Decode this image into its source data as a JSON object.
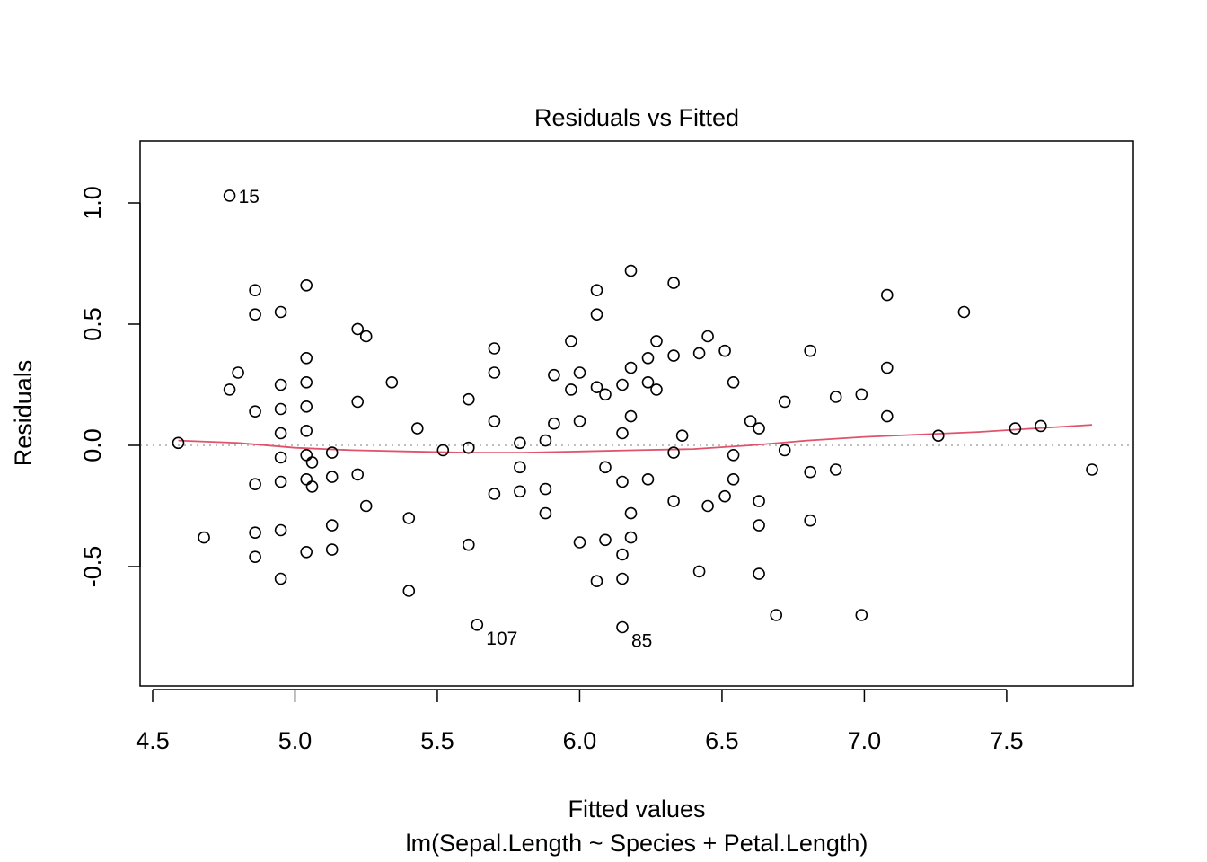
{
  "chart_data": {
    "type": "scatter",
    "title": "Residuals vs Fitted",
    "xlabel": "Fitted values",
    "ylabel": "Residuals",
    "subtitle": "lm(Sepal.Length ~ Species + Petal.Length)",
    "xlim": [
      4.5,
      7.85
    ],
    "ylim": [
      -0.9,
      1.2
    ],
    "xticks": [
      "4.5",
      "5.0",
      "5.5",
      "6.0",
      "6.5",
      "7.0",
      "7.5"
    ],
    "yticks": [
      "-0.5",
      "0.0",
      "0.5",
      "1.0"
    ],
    "grid": false,
    "legend": "none",
    "reference_line": {
      "y": 0,
      "style": "dotted",
      "color": "#bebebe"
    },
    "smoother_color": "#df536b",
    "point_color": "#000000",
    "points": [
      [
        4.59,
        0.01
      ],
      [
        4.68,
        -0.38
      ],
      [
        4.77,
        1.03
      ],
      [
        4.77,
        0.23
      ],
      [
        4.8,
        0.3
      ],
      [
        4.86,
        0.64
      ],
      [
        4.86,
        0.54
      ],
      [
        4.86,
        0.14
      ],
      [
        4.86,
        -0.16
      ],
      [
        4.86,
        -0.36
      ],
      [
        4.86,
        -0.46
      ],
      [
        4.95,
        0.55
      ],
      [
        4.95,
        0.25
      ],
      [
        4.95,
        0.15
      ],
      [
        4.95,
        0.05
      ],
      [
        4.95,
        -0.05
      ],
      [
        4.95,
        -0.15
      ],
      [
        4.95,
        -0.35
      ],
      [
        4.95,
        -0.55
      ],
      [
        5.04,
        0.66
      ],
      [
        5.04,
        0.36
      ],
      [
        5.04,
        0.26
      ],
      [
        5.04,
        0.16
      ],
      [
        5.04,
        0.06
      ],
      [
        5.04,
        -0.04
      ],
      [
        5.04,
        -0.14
      ],
      [
        5.04,
        -0.44
      ],
      [
        5.06,
        -0.07
      ],
      [
        5.06,
        -0.17
      ],
      [
        5.13,
        -0.03
      ],
      [
        5.13,
        -0.13
      ],
      [
        5.13,
        -0.33
      ],
      [
        5.13,
        -0.43
      ],
      [
        5.22,
        0.48
      ],
      [
        5.22,
        0.18
      ],
      [
        5.22,
        -0.12
      ],
      [
        5.25,
        0.45
      ],
      [
        5.25,
        -0.25
      ],
      [
        5.34,
        0.26
      ],
      [
        5.4,
        -0.3
      ],
      [
        5.4,
        -0.6
      ],
      [
        5.43,
        0.07
      ],
      [
        5.52,
        -0.02
      ],
      [
        5.61,
        0.19
      ],
      [
        5.61,
        -0.01
      ],
      [
        5.61,
        -0.41
      ],
      [
        5.64,
        -0.74
      ],
      [
        5.7,
        0.4
      ],
      [
        5.7,
        0.3
      ],
      [
        5.7,
        0.1
      ],
      [
        5.7,
        -0.2
      ],
      [
        5.79,
        0.01
      ],
      [
        5.79,
        -0.09
      ],
      [
        5.79,
        -0.19
      ],
      [
        5.88,
        0.02
      ],
      [
        5.88,
        -0.18
      ],
      [
        5.88,
        -0.28
      ],
      [
        5.91,
        0.29
      ],
      [
        5.91,
        0.09
      ],
      [
        5.97,
        0.43
      ],
      [
        5.97,
        0.23
      ],
      [
        6.0,
        0.3
      ],
      [
        6.0,
        0.1
      ],
      [
        6.0,
        -0.4
      ],
      [
        6.06,
        0.64
      ],
      [
        6.06,
        0.54
      ],
      [
        6.06,
        0.24
      ],
      [
        6.06,
        -0.56
      ],
      [
        6.09,
        0.21
      ],
      [
        6.09,
        -0.09
      ],
      [
        6.09,
        -0.39
      ],
      [
        6.15,
        0.25
      ],
      [
        6.15,
        0.05
      ],
      [
        6.15,
        -0.15
      ],
      [
        6.15,
        -0.45
      ],
      [
        6.15,
        -0.55
      ],
      [
        6.15,
        -0.75
      ],
      [
        6.18,
        0.72
      ],
      [
        6.18,
        0.32
      ],
      [
        6.18,
        0.12
      ],
      [
        6.18,
        -0.28
      ],
      [
        6.18,
        -0.38
      ],
      [
        6.24,
        0.36
      ],
      [
        6.24,
        0.26
      ],
      [
        6.24,
        -0.14
      ],
      [
        6.27,
        0.43
      ],
      [
        6.27,
        0.23
      ],
      [
        6.33,
        0.67
      ],
      [
        6.33,
        0.37
      ],
      [
        6.33,
        -0.03
      ],
      [
        6.33,
        -0.23
      ],
      [
        6.36,
        0.04
      ],
      [
        6.42,
        0.38
      ],
      [
        6.42,
        -0.52
      ],
      [
        6.45,
        0.45
      ],
      [
        6.45,
        -0.25
      ],
      [
        6.51,
        0.39
      ],
      [
        6.51,
        -0.21
      ],
      [
        6.54,
        0.26
      ],
      [
        6.54,
        -0.04
      ],
      [
        6.54,
        -0.14
      ],
      [
        6.6,
        0.1
      ],
      [
        6.63,
        0.07
      ],
      [
        6.63,
        -0.23
      ],
      [
        6.63,
        -0.33
      ],
      [
        6.63,
        -0.53
      ],
      [
        6.69,
        -0.7
      ],
      [
        6.72,
        0.18
      ],
      [
        6.72,
        -0.02
      ],
      [
        6.81,
        0.39
      ],
      [
        6.81,
        -0.11
      ],
      [
        6.81,
        -0.31
      ],
      [
        6.9,
        0.2
      ],
      [
        6.9,
        -0.1
      ],
      [
        6.99,
        0.21
      ],
      [
        6.99,
        -0.7
      ],
      [
        7.08,
        0.62
      ],
      [
        7.08,
        0.32
      ],
      [
        7.08,
        0.12
      ],
      [
        7.26,
        0.04
      ],
      [
        7.35,
        0.55
      ],
      [
        7.53,
        0.07
      ],
      [
        7.62,
        0.08
      ],
      [
        7.8,
        -0.1
      ]
    ],
    "smoother": [
      [
        4.59,
        0.02
      ],
      [
        4.8,
        0.01
      ],
      [
        5.0,
        -0.01
      ],
      [
        5.2,
        -0.02
      ],
      [
        5.4,
        -0.025
      ],
      [
        5.6,
        -0.03
      ],
      [
        5.8,
        -0.03
      ],
      [
        6.0,
        -0.025
      ],
      [
        6.2,
        -0.02
      ],
      [
        6.4,
        -0.015
      ],
      [
        6.6,
        0.0
      ],
      [
        6.8,
        0.02
      ],
      [
        7.0,
        0.035
      ],
      [
        7.2,
        0.045
      ],
      [
        7.4,
        0.055
      ],
      [
        7.6,
        0.07
      ],
      [
        7.8,
        0.085
      ]
    ],
    "annotations": [
      {
        "label": "15",
        "x": 4.77,
        "y": 1.03,
        "side": "right"
      },
      {
        "label": "107",
        "x": 5.64,
        "y": -0.74,
        "side": "below-right"
      },
      {
        "label": "85",
        "x": 6.15,
        "y": -0.75,
        "side": "below-right"
      }
    ]
  }
}
